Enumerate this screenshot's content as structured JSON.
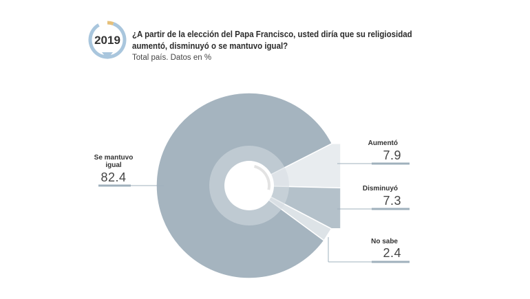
{
  "badge": {
    "year": "2019"
  },
  "header": {
    "title": "¿A partir de la elección del Papa Francisco, usted diría que su religiosidad aumentó, disminuyó o se mantuvo igual?",
    "subtitle": "Total país. Datos en %"
  },
  "colors": {
    "se_mantuvo_igual": "#a5b4bf",
    "aumento": "#e8ecef",
    "disminuyo": "#b4c1ca",
    "no_sabe": "#dde3e7",
    "inner_ring": "#d6dde2",
    "accent_line": "#9fb0bc"
  },
  "chart_data": {
    "type": "pie",
    "title": "¿A partir de la elección del Papa Francisco, usted diría que su religiosidad aumentó, disminuyó o se mantuvo igual?",
    "subtitle": "Total país. Datos en %",
    "slices": [
      {
        "label": "Aumentó",
        "value": 7.9,
        "display": "7.9"
      },
      {
        "label": "Disminuyó",
        "value": 7.3,
        "display": "7.3"
      },
      {
        "label": "No sabe",
        "value": 2.4,
        "display": "2.4"
      },
      {
        "label": "Se mantuvo igual",
        "value": 82.4,
        "display": "82.4",
        "label_lines": [
          "Se mantuvo",
          "igual"
        ]
      }
    ]
  }
}
